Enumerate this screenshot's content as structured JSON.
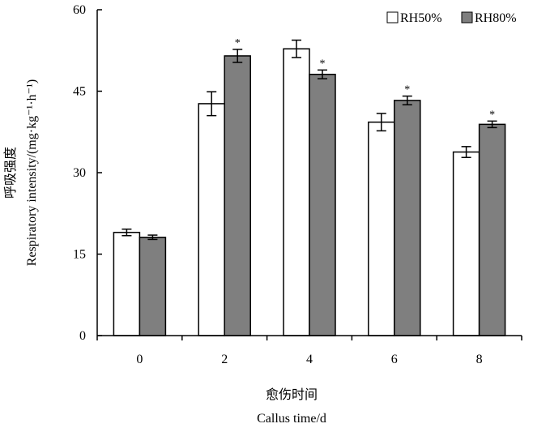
{
  "chart_data": {
    "type": "bar",
    "xlabel_cn": "愈伤时间",
    "xlabel_en": "Callus time/d",
    "ylabel_cn": "呼吸强度",
    "ylabel_en": "Respiratory intensity/(mg·kg⁻¹·h⁻¹)",
    "categories": [
      "0",
      "2",
      "4",
      "6",
      "8"
    ],
    "ylim": [
      0,
      60
    ],
    "yticks": [
      "0",
      "15",
      "30",
      "45",
      "60"
    ],
    "series": [
      {
        "name": "RH50%",
        "color": "#ffffff",
        "values": [
          19.0,
          42.7,
          52.8,
          39.3,
          33.8
        ],
        "errors": [
          0.6,
          2.2,
          1.6,
          1.6,
          1.0
        ],
        "significant": [
          false,
          false,
          false,
          false,
          false
        ]
      },
      {
        "name": "RH80%",
        "color": "#7f7f7f",
        "values": [
          18.1,
          51.5,
          48.1,
          43.3,
          38.9
        ],
        "errors": [
          0.4,
          1.2,
          0.8,
          0.8,
          0.6
        ],
        "significant": [
          false,
          true,
          true,
          true,
          true
        ]
      }
    ],
    "significance_marker": "*",
    "legend_position": "top-right",
    "grid": false
  }
}
